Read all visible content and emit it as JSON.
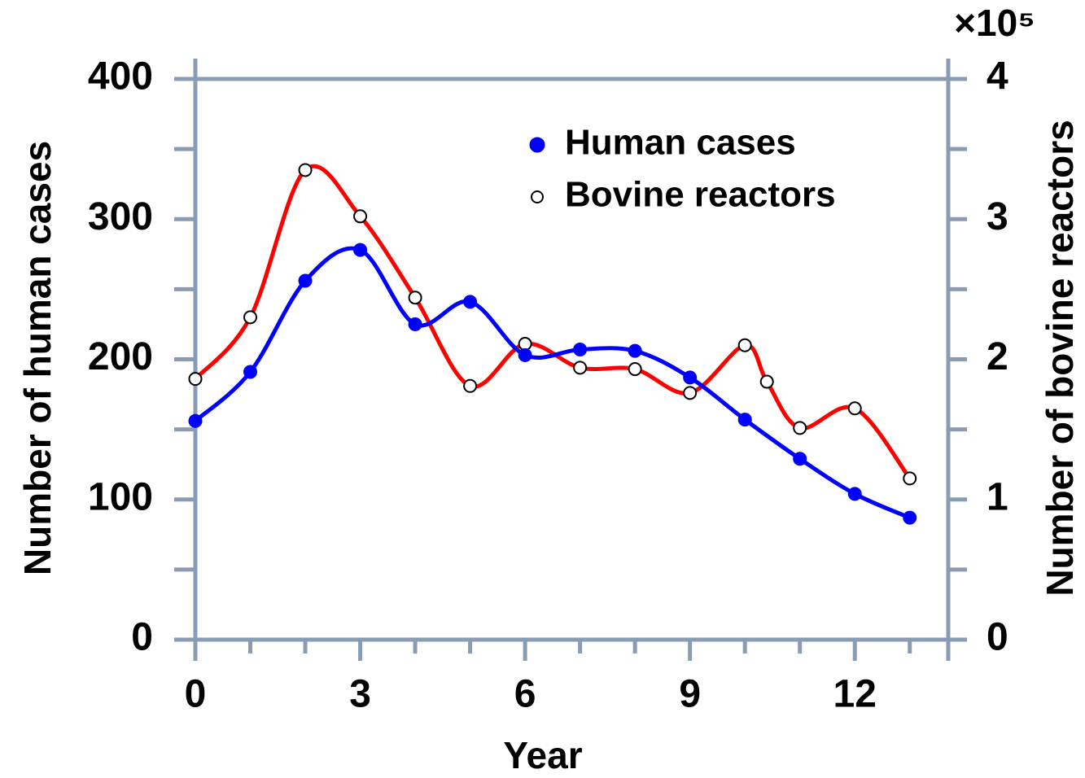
{
  "chart_data": {
    "type": "line",
    "xlabel": "Year",
    "ylabel": "Number of human cases",
    "y2label": "Number of bovine reactors",
    "y2_multiplier": "×10⁵",
    "xlim": [
      0,
      13.7
    ],
    "xticks": [
      0,
      3,
      6,
      9,
      12
    ],
    "xticks_minor": [
      1,
      2,
      4,
      5,
      7,
      8,
      10,
      11,
      13
    ],
    "ylim": [
      0,
      400
    ],
    "yticks": [
      0,
      100,
      200,
      300,
      400
    ],
    "yticks_minor": [
      50,
      150,
      250,
      350
    ],
    "y2lim": [
      0,
      4
    ],
    "y2ticks": [
      0,
      1,
      2,
      3,
      4
    ],
    "y2ticks_minor": [
      0.5,
      1.5,
      2.5,
      3.5
    ],
    "legend": "upper right",
    "smooth": true,
    "series": [
      {
        "name": "Human cases",
        "color": "#0000ff",
        "marker": "filled",
        "x": [
          0,
          1,
          2,
          3,
          4,
          5,
          6,
          7,
          8,
          9,
          10,
          11,
          12,
          13
        ],
        "values": [
          156,
          191,
          256,
          278,
          225,
          241,
          203,
          207,
          206,
          187,
          157,
          129,
          104,
          87
        ]
      },
      {
        "name": "Bovine reactors",
        "color": "#ff0000",
        "marker": "open",
        "axis": "y2",
        "x": [
          0,
          1,
          2,
          3,
          4,
          5,
          6,
          7,
          8,
          9,
          10,
          10.4,
          11,
          12,
          13
        ],
        "values": [
          1.86,
          2.3,
          3.35,
          3.02,
          2.44,
          1.81,
          2.11,
          1.94,
          1.93,
          1.76,
          2.1,
          1.84,
          1.51,
          1.65,
          1.15
        ]
      }
    ]
  }
}
